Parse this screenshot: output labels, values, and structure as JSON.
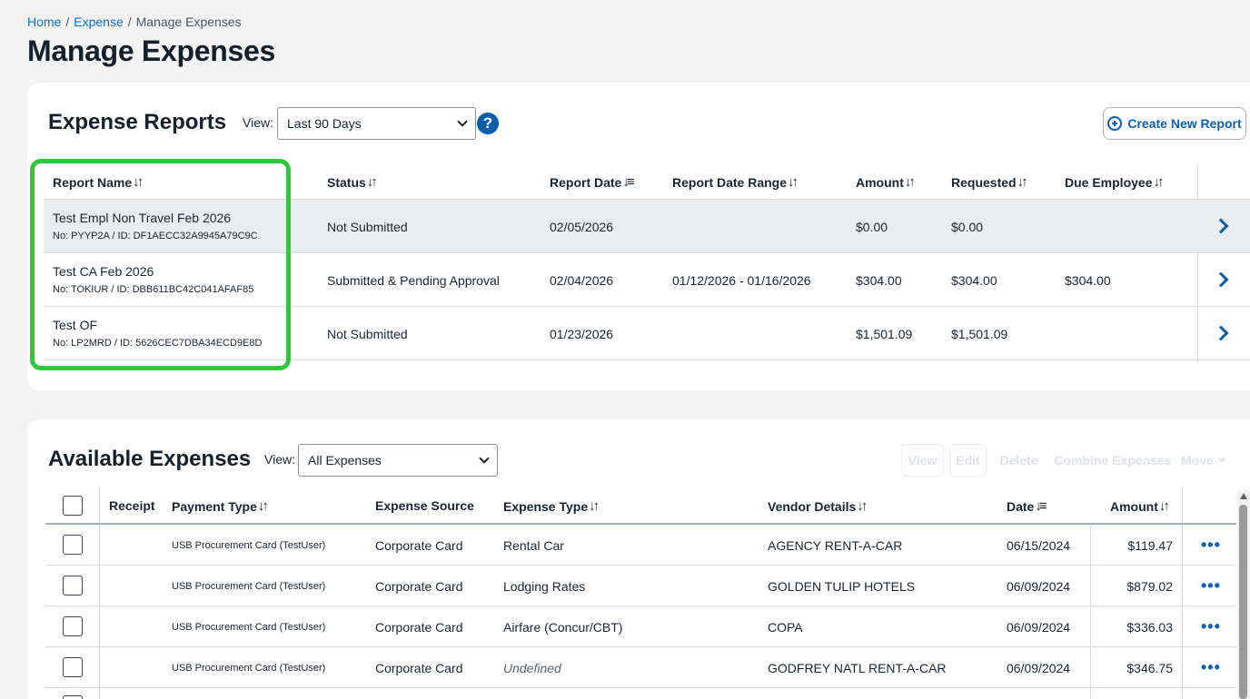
{
  "breadcrumb": {
    "home": "Home",
    "expense": "Expense",
    "current": "Manage Expenses",
    "sep": "/"
  },
  "page_title": "Manage Expenses",
  "reports": {
    "title": "Expense Reports",
    "view_label": "View:",
    "view_value": "Last 90 Days",
    "help": "?",
    "create_label": "Create New Report",
    "columns": [
      "Report Name",
      "Status",
      "Report Date",
      "Report Date Range",
      "Amount",
      "Requested",
      "Due Employee"
    ],
    "sort_icon": "↓↑",
    "sort_active_icon": "↓≡",
    "rows": [
      {
        "name": "Test Empl Non Travel Feb 2026",
        "sub": "No: PYYP2A / ID: DF1AECC32A9945A79C9C",
        "status": "Not Submitted",
        "date": "02/05/2026",
        "range": "",
        "amount": "$0.00",
        "requested": "$0.00",
        "due": ""
      },
      {
        "name": "Test CA Feb 2026",
        "sub": "No: TOKIUR / ID: DBB611BC42C041AFAF85",
        "status": "Submitted & Pending Approval",
        "date": "02/04/2026",
        "range": "01/12/2026 - 01/16/2026",
        "amount": "$304.00",
        "requested": "$304.00",
        "due": "$304.00"
      },
      {
        "name": "Test OF",
        "sub": "No: LP2MRD / ID: 5626CEC7DBA34ECD9E8D",
        "status": "Not Submitted",
        "date": "01/23/2026",
        "range": "",
        "amount": "$1,501.09",
        "requested": "$1,501.09",
        "due": ""
      }
    ]
  },
  "expenses": {
    "title": "Available Expenses",
    "view_label": "View:",
    "view_value": "All Expenses",
    "toolbar": {
      "view": "View",
      "edit": "Edit",
      "delete": "Delete",
      "combine": "Combine Expenses",
      "move": "Move"
    },
    "columns": [
      "Receipt",
      "Payment Type",
      "Expense Source",
      "Expense Type",
      "Vendor Details",
      "Date",
      "Amount"
    ],
    "rows": [
      {
        "payment": "USB Procurement Card (TestUser)",
        "source": "Corporate Card",
        "type": "Rental Car",
        "vendor": "AGENCY RENT-A-CAR",
        "date": "06/15/2024",
        "amount": "$119.47"
      },
      {
        "payment": "USB Procurement Card (TestUser)",
        "source": "Corporate Card",
        "type": "Lodging Rates",
        "vendor": "GOLDEN TULIP HOTELS",
        "date": "06/09/2024",
        "amount": "$879.02"
      },
      {
        "payment": "USB Procurement Card (TestUser)",
        "source": "Corporate Card",
        "type": "Airfare (Concur/CBT)",
        "vendor": "COPA",
        "date": "06/09/2024",
        "amount": "$336.03"
      },
      {
        "payment": "USB Procurement Card (TestUser)",
        "source": "Corporate Card",
        "type": "Undefined",
        "vendor": "GODFREY NATL RENT-A-CAR",
        "date": "06/09/2024",
        "amount": "$346.75"
      }
    ],
    "more_icon": "•••"
  },
  "colors": {
    "accent": "#0a5fa8",
    "highlight": "#2dc83e"
  }
}
